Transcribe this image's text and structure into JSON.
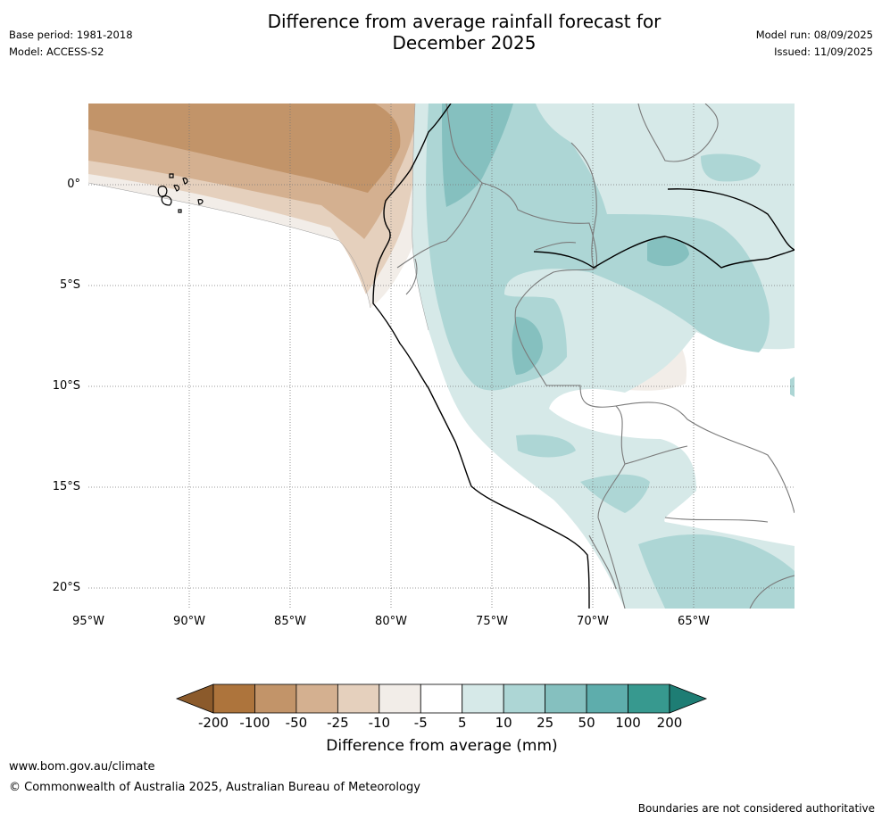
{
  "header": {
    "base_period": "Base period: 1981-2018",
    "model": "Model: ACCESS-S2",
    "title_line1": "Difference from average rainfall forecast for",
    "title_line2": "December 2025",
    "model_run": "Model run: 08/09/2025",
    "issued": "Issued: 11/09/2025"
  },
  "map": {
    "lat_labels": [
      "0°",
      "5°S",
      "10°S",
      "15°S",
      "20°S"
    ],
    "lon_labels": [
      "95°W",
      "90°W",
      "85°W",
      "80°W",
      "75°W",
      "70°W",
      "65°W"
    ]
  },
  "colorbar": {
    "title": "Difference from average (mm)",
    "ticks": [
      "-200",
      "-100",
      "-50",
      "-25",
      "-10",
      "-5",
      "5",
      "10",
      "25",
      "50",
      "100",
      "200"
    ],
    "colors": [
      "#8b5a2b",
      "#ad743c",
      "#c29469",
      "#d4b090",
      "#e5d0bd",
      "#f2ede8",
      "#ffffff",
      "#d6e9e8",
      "#add6d5",
      "#85c0bf",
      "#5eadac",
      "#37998f",
      "#1e7d74"
    ]
  },
  "footer": {
    "url": "www.bom.gov.au/climate",
    "copyright": "© Commonwealth of Australia 2025, Australian Bureau of Meteorology",
    "disclaimer": "Boundaries are not considered authoritative"
  }
}
